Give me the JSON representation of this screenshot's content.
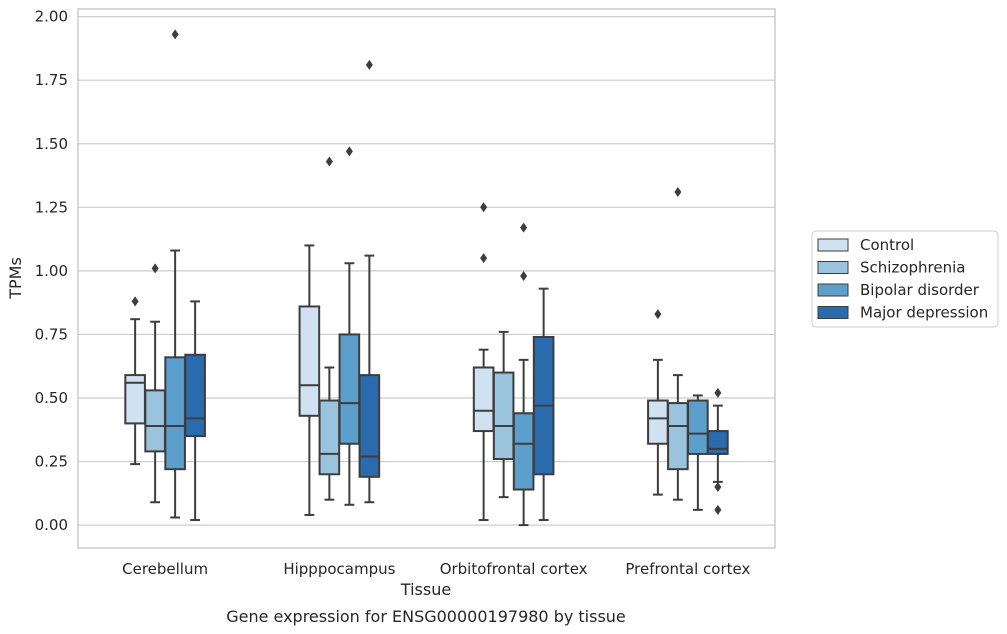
{
  "caption": "Gene expression for ENSG00000197980 by tissue",
  "chart_data": {
    "type": "box",
    "xlabel": "Tissue",
    "ylabel": "TPMs",
    "ylim": [
      -0.09,
      2.03
    ],
    "yticks": [
      "0.00",
      "0.25",
      "0.50",
      "0.75",
      "1.00",
      "1.25",
      "1.50",
      "1.75",
      "2.00"
    ],
    "grid": true,
    "legend_position": "right",
    "categories": [
      "Cerebellum",
      "Hipppocampus",
      "Orbitofrontal cortex",
      "Prefrontal cortex"
    ],
    "series": [
      {
        "name": "Control",
        "color": "#d0e1f1",
        "boxes": [
          {
            "whislo": 0.24,
            "q1": 0.4,
            "med": 0.56,
            "q3": 0.59,
            "whishi": 0.81,
            "fliers": [
              0.88
            ]
          },
          {
            "whislo": 0.04,
            "q1": 0.43,
            "med": 0.55,
            "q3": 0.86,
            "whishi": 1.1,
            "fliers": []
          },
          {
            "whislo": 0.02,
            "q1": 0.37,
            "med": 0.45,
            "q3": 0.62,
            "whishi": 0.69,
            "fliers": [
              1.05,
              1.25
            ]
          },
          {
            "whislo": 0.12,
            "q1": 0.32,
            "med": 0.42,
            "q3": 0.49,
            "whishi": 0.65,
            "fliers": [
              0.83
            ]
          }
        ]
      },
      {
        "name": "Schizophrenia",
        "color": "#9ac3de",
        "boxes": [
          {
            "whislo": 0.09,
            "q1": 0.29,
            "med": 0.39,
            "q3": 0.53,
            "whishi": 0.8,
            "fliers": [
              1.01
            ]
          },
          {
            "whislo": 0.1,
            "q1": 0.2,
            "med": 0.28,
            "q3": 0.49,
            "whishi": 0.62,
            "fliers": [
              1.43
            ]
          },
          {
            "whislo": 0.11,
            "q1": 0.26,
            "med": 0.39,
            "q3": 0.6,
            "whishi": 0.76,
            "fliers": []
          },
          {
            "whislo": 0.1,
            "q1": 0.22,
            "med": 0.39,
            "q3": 0.48,
            "whishi": 0.59,
            "fliers": [
              1.31
            ]
          }
        ]
      },
      {
        "name": "Bipolar disorder",
        "color": "#5c9fcd",
        "boxes": [
          {
            "whislo": 0.03,
            "q1": 0.22,
            "med": 0.39,
            "q3": 0.66,
            "whishi": 1.08,
            "fliers": [
              1.93
            ]
          },
          {
            "whislo": 0.08,
            "q1": 0.32,
            "med": 0.48,
            "q3": 0.75,
            "whishi": 1.03,
            "fliers": [
              1.47
            ]
          },
          {
            "whislo": 0.0,
            "q1": 0.14,
            "med": 0.32,
            "q3": 0.44,
            "whishi": 0.65,
            "fliers": [
              0.98,
              1.17
            ]
          },
          {
            "whislo": 0.06,
            "q1": 0.28,
            "med": 0.36,
            "q3": 0.49,
            "whishi": 0.51,
            "fliers": []
          }
        ]
      },
      {
        "name": "Major depression",
        "color": "#2a6bad",
        "boxes": [
          {
            "whislo": 0.02,
            "q1": 0.35,
            "med": 0.42,
            "q3": 0.67,
            "whishi": 0.88,
            "fliers": []
          },
          {
            "whislo": 0.09,
            "q1": 0.19,
            "med": 0.27,
            "q3": 0.59,
            "whishi": 1.06,
            "fliers": [
              1.81
            ]
          },
          {
            "whislo": 0.02,
            "q1": 0.2,
            "med": 0.47,
            "q3": 0.74,
            "whishi": 0.93,
            "fliers": []
          },
          {
            "whislo": 0.17,
            "q1": 0.28,
            "med": 0.3,
            "q3": 0.37,
            "whishi": 0.47,
            "fliers": [
              0.06,
              0.15,
              0.52
            ]
          }
        ]
      }
    ]
  }
}
